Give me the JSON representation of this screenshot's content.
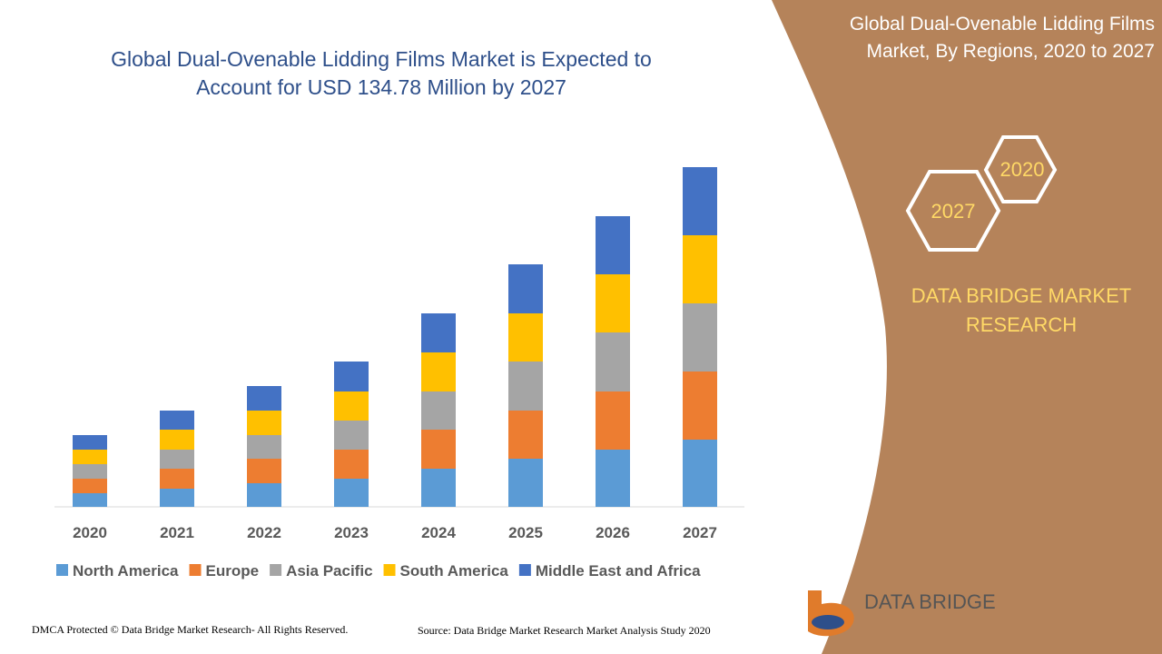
{
  "chart_data": {
    "type": "bar",
    "stacked": true,
    "title": "Global Dual-Ovenable Lidding Films Market is Expected to Account for USD 134.78 Million by 2027",
    "categories": [
      "2020",
      "2021",
      "2022",
      "2023",
      "2024",
      "2025",
      "2026",
      "2027"
    ],
    "series": [
      {
        "name": "North America",
        "color": "#5b9bd5",
        "values": [
          15,
          20,
          26,
          31,
          42,
          53,
          63,
          74
        ]
      },
      {
        "name": "Europe",
        "color": "#ed7d31",
        "values": [
          16,
          22,
          27,
          32,
          43,
          53,
          64,
          75
        ]
      },
      {
        "name": "Asia Pacific",
        "color": "#a5a5a5",
        "values": [
          16,
          21,
          26,
          32,
          42,
          54,
          65,
          75
        ]
      },
      {
        "name": "South America",
        "color": "#ffc000",
        "values": [
          16,
          22,
          27,
          32,
          43,
          53,
          64,
          75
        ]
      },
      {
        "name": "Middle East and Africa",
        "color": "#4472c4",
        "values": [
          16,
          21,
          27,
          33,
          43,
          54,
          64,
          75
        ]
      }
    ],
    "ylim": [
      0,
      380
    ]
  },
  "sidebar": {
    "title": "Global Dual-Ovenable Lidding Films Market, By Regions, 2020 to 2027",
    "hex_a": "2020",
    "hex_b": "2027",
    "brand": "DATA BRIDGE MARKET RESEARCH",
    "logo": "DATA BRIDGE"
  },
  "footer": {
    "left": "DMCA Protected © Data Bridge Market Research- All Rights Reserved.",
    "source": "Source: Data Bridge Market Research Market Analysis Study 2020"
  }
}
